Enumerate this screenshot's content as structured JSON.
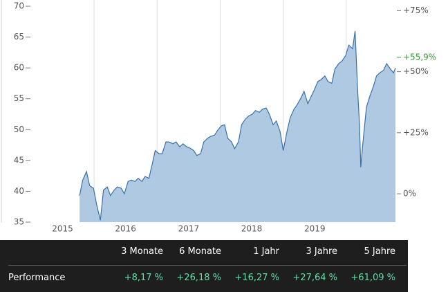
{
  "chart_data": {
    "type": "area",
    "x": [
      2015.77,
      2015.82,
      2015.88,
      2015.93,
      2015.99,
      2016.04,
      2016.1,
      2016.15,
      2016.21,
      2016.26,
      2016.32,
      2016.37,
      2016.43,
      2016.48,
      2016.54,
      2016.59,
      2016.65,
      2016.7,
      2016.76,
      2016.81,
      2016.87,
      2016.92,
      2016.97,
      2017.03,
      2017.08,
      2017.14,
      2017.19,
      2017.25,
      2017.3,
      2017.36,
      2017.41,
      2017.47,
      2017.52,
      2017.58,
      2017.63,
      2017.69,
      2017.74,
      2017.8,
      2017.85,
      2017.91,
      2017.96,
      2018.02,
      2018.07,
      2018.12,
      2018.18,
      2018.23,
      2018.29,
      2018.34,
      2018.4,
      2018.45,
      2018.51,
      2018.56,
      2018.62,
      2018.67,
      2018.73,
      2018.78,
      2018.84,
      2018.89,
      2018.95,
      2019.0,
      2019.06,
      2019.11,
      2019.17,
      2019.22,
      2019.28,
      2019.33,
      2019.39,
      2019.44,
      2019.49,
      2019.55,
      2019.6,
      2019.66,
      2019.71,
      2019.77,
      2019.82,
      2019.88,
      2019.93,
      2019.99,
      2020.04,
      2020.1,
      2020.14,
      2020.18,
      2020.21,
      2020.23,
      2020.26,
      2020.32,
      2020.37,
      2020.43,
      2020.48,
      2020.53,
      2020.59,
      2020.64,
      2020.7,
      2020.75,
      2020.78
    ],
    "values": [
      39.3,
      41.8,
      43.2,
      40.9,
      40.5,
      37.9,
      35.3,
      40.2,
      40.7,
      39.3,
      40.2,
      40.7,
      40.5,
      39.6,
      41.6,
      41.8,
      41.6,
      42.1,
      41.6,
      42.4,
      42.1,
      44.3,
      46.6,
      46.1,
      46.1,
      48.0,
      48.0,
      47.7,
      48.0,
      47.2,
      47.7,
      47.2,
      47.0,
      46.6,
      45.8,
      46.1,
      48.0,
      48.6,
      48.9,
      49.1,
      49.9,
      50.6,
      50.8,
      48.6,
      48.0,
      46.9,
      48.0,
      50.8,
      51.7,
      52.2,
      52.5,
      53.1,
      52.8,
      53.3,
      53.5,
      52.5,
      50.8,
      51.4,
      49.7,
      46.6,
      49.7,
      51.9,
      53.3,
      54.0,
      55.1,
      56.2,
      54.2,
      55.3,
      56.4,
      57.8,
      58.1,
      58.7,
      57.8,
      57.5,
      59.8,
      60.7,
      61.1,
      62.0,
      63.7,
      63.1,
      66.0,
      56.4,
      50.8,
      43.9,
      47.5,
      53.6,
      55.3,
      57.0,
      58.7,
      59.2,
      59.6,
      60.7,
      59.8,
      59.2,
      60.0
    ],
    "color": "#3a6fa8",
    "fill": "#b0c9e3",
    "xlim": [
      2014.53,
      2020.78
    ],
    "xticks": [
      {
        "value": 2015.5,
        "label": "2015"
      },
      {
        "value": 2016.5,
        "label": "2016"
      },
      {
        "value": 2017.5,
        "label": "2017"
      },
      {
        "value": 2018.5,
        "label": "2018"
      },
      {
        "value": 2019.5,
        "label": "2019"
      }
    ],
    "xgrid": [
      2016,
      2017,
      2018,
      2019,
      2020
    ],
    "ylim": [
      35,
      70
    ],
    "yticks": [
      35,
      40,
      45,
      50,
      55,
      60,
      65,
      70
    ],
    "y2lim": [
      -11.6,
      76.8
    ],
    "y2ticks": [
      {
        "value": 0,
        "label": "0%"
      },
      {
        "value": 25,
        "label": "+25%"
      },
      {
        "value": 50,
        "label": "+50%"
      },
      {
        "value": 75,
        "label": "+75%"
      }
    ],
    "annotation": {
      "value": 55.9,
      "label": "+55,9%",
      "color": "#2e9a2e"
    }
  },
  "table": {
    "columns": [
      "3 Monate",
      "6 Monate",
      "1 Jahr",
      "3 Jahre",
      "5 Jahre"
    ],
    "rows": [
      [
        "Performance",
        "+8,17 %",
        "+26,18 %",
        "+16,27 %",
        "+27,64 %",
        "+61,09 %"
      ]
    ]
  }
}
